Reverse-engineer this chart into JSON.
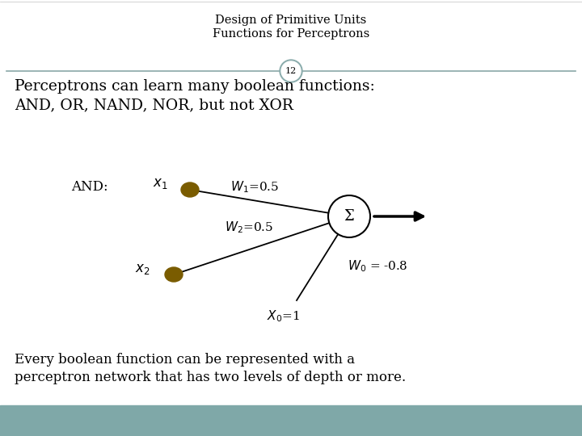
{
  "title_line1": "Design of Primitive Units",
  "title_line2": "Functions for Perceptrons",
  "slide_number": "12",
  "and_label": "AND:",
  "sigma_label": "Σ",
  "bg_color": "#ffffff",
  "footer_bg": "#7fa8a8",
  "node_color": "#7a5c00",
  "sigma_node_color": "#ffffff",
  "sigma_node_edge": "#000000",
  "title_color": "#000000",
  "text_color": "#000000",
  "divider_color": "#8aa8a8",
  "slide_num_circle_color": "#8aacac",
  "slide_num_text_color": "#000000"
}
